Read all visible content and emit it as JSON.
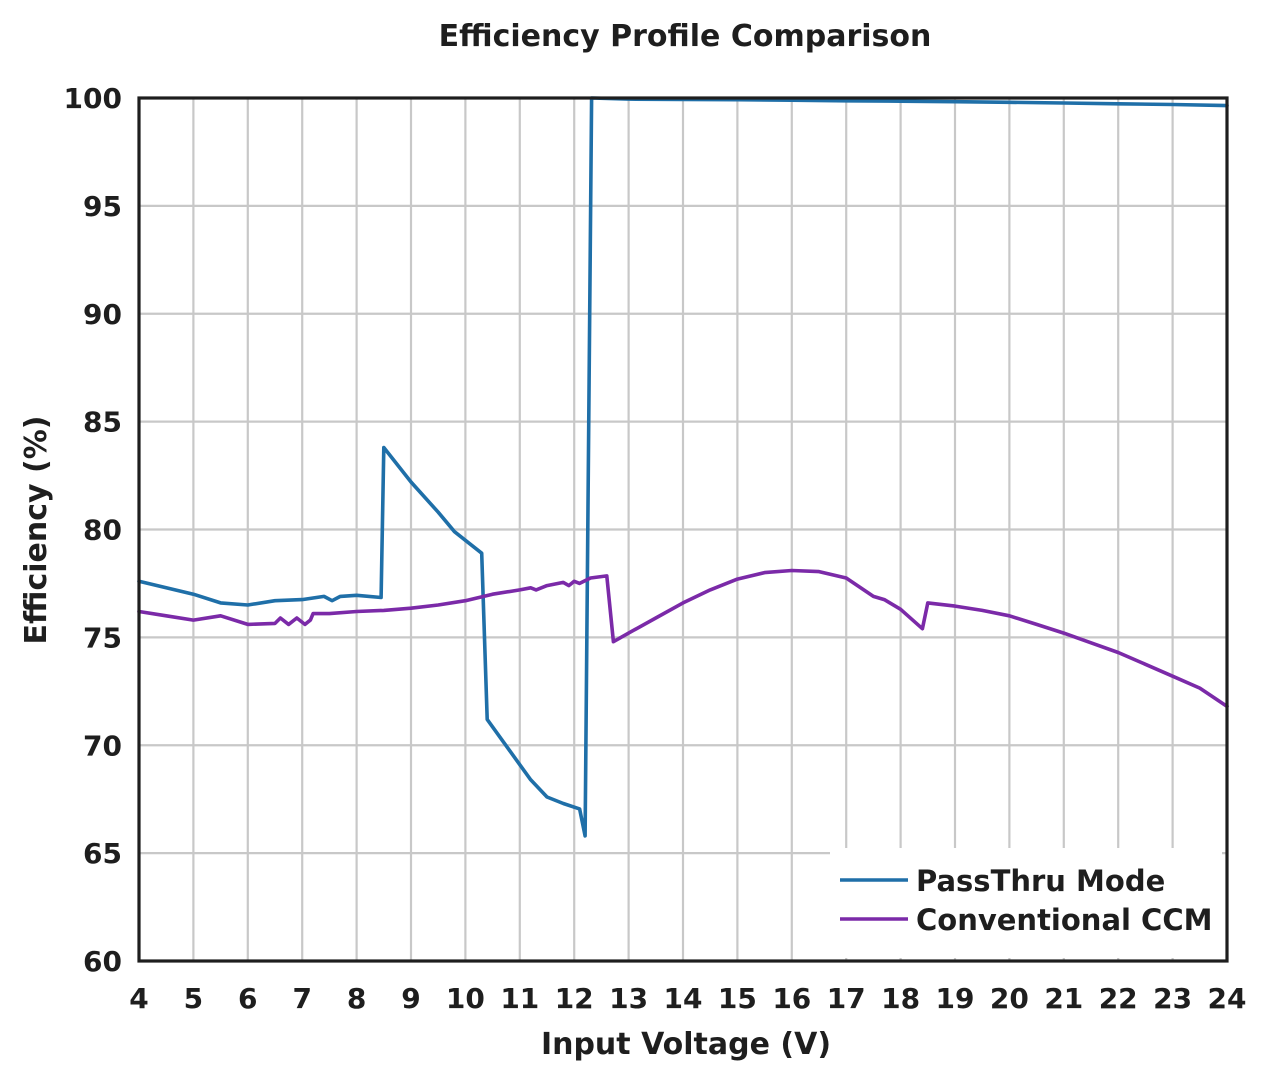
{
  "chart_data": {
    "type": "line",
    "title": "Efficiency Profile Comparison",
    "xlabel": "Input Voltage (V)",
    "ylabel": "Efficiency (%)",
    "xlim": [
      4,
      24
    ],
    "ylim": [
      60,
      100
    ],
    "xticks": [
      4,
      5,
      6,
      7,
      8,
      9,
      10,
      11,
      12,
      13,
      14,
      15,
      16,
      17,
      18,
      19,
      20,
      21,
      22,
      23,
      24
    ],
    "xtick_labels": [
      "4",
      "5",
      "6",
      "7",
      "8",
      "9",
      "10",
      "11",
      "12",
      "13",
      "14",
      "15",
      "16",
      "17",
      "18",
      "19",
      "20",
      "21",
      "22",
      "23",
      "24"
    ],
    "yticks": [
      60,
      65,
      70,
      75,
      80,
      85,
      90,
      95,
      100
    ],
    "ytick_labels": [
      "60",
      "65",
      "70",
      "75",
      "80",
      "85",
      "90",
      "95",
      "100"
    ],
    "grid": true,
    "legend_position": "bottom-right",
    "series": [
      {
        "name": "PassThru Mode",
        "color": "#1f6fa8",
        "points": [
          [
            4.0,
            77.6
          ],
          [
            4.5,
            77.3
          ],
          [
            5.0,
            77.0
          ],
          [
            5.5,
            76.6
          ],
          [
            6.0,
            76.5
          ],
          [
            6.5,
            76.7
          ],
          [
            7.0,
            76.75
          ],
          [
            7.4,
            76.9
          ],
          [
            7.55,
            76.7
          ],
          [
            7.7,
            76.9
          ],
          [
            8.0,
            76.95
          ],
          [
            8.45,
            76.85
          ],
          [
            8.5,
            83.8
          ],
          [
            9.0,
            82.2
          ],
          [
            9.5,
            80.8
          ],
          [
            9.8,
            79.9
          ],
          [
            10.0,
            79.5
          ],
          [
            10.3,
            78.9
          ],
          [
            10.4,
            71.2
          ],
          [
            10.8,
            69.8
          ],
          [
            11.2,
            68.4
          ],
          [
            11.5,
            67.6
          ],
          [
            11.8,
            67.3
          ],
          [
            12.1,
            67.05
          ],
          [
            12.2,
            65.8
          ],
          [
            12.32,
            100
          ],
          [
            13,
            99.95
          ],
          [
            14,
            99.93
          ],
          [
            15,
            99.92
          ],
          [
            16,
            99.9
          ],
          [
            17,
            99.87
          ],
          [
            18,
            99.85
          ],
          [
            19,
            99.83
          ],
          [
            20,
            99.8
          ],
          [
            21,
            99.77
          ],
          [
            22,
            99.73
          ],
          [
            23,
            99.7
          ],
          [
            24,
            99.65
          ]
        ]
      },
      {
        "name": "Conventional CCM",
        "color": "#7b2aa8",
        "points": [
          [
            4.0,
            76.2
          ],
          [
            4.5,
            76.0
          ],
          [
            5.0,
            75.8
          ],
          [
            5.5,
            76.0
          ],
          [
            6.0,
            75.6
          ],
          [
            6.5,
            75.65
          ],
          [
            6.6,
            75.9
          ],
          [
            6.75,
            75.6
          ],
          [
            6.9,
            75.9
          ],
          [
            7.05,
            75.6
          ],
          [
            7.15,
            75.8
          ],
          [
            7.2,
            76.1
          ],
          [
            7.5,
            76.1
          ],
          [
            8.0,
            76.2
          ],
          [
            8.5,
            76.25
          ],
          [
            9.0,
            76.35
          ],
          [
            9.5,
            76.5
          ],
          [
            10.0,
            76.7
          ],
          [
            10.5,
            77.0
          ],
          [
            11.0,
            77.2
          ],
          [
            11.2,
            77.3
          ],
          [
            11.3,
            77.2
          ],
          [
            11.5,
            77.4
          ],
          [
            11.8,
            77.55
          ],
          [
            11.9,
            77.4
          ],
          [
            12.0,
            77.6
          ],
          [
            12.1,
            77.5
          ],
          [
            12.3,
            77.75
          ],
          [
            12.6,
            77.85
          ],
          [
            12.72,
            74.8
          ],
          [
            13.0,
            75.2
          ],
          [
            13.5,
            75.9
          ],
          [
            14.0,
            76.6
          ],
          [
            14.5,
            77.2
          ],
          [
            15.0,
            77.7
          ],
          [
            15.5,
            78.0
          ],
          [
            16.0,
            78.1
          ],
          [
            16.5,
            78.05
          ],
          [
            17.0,
            77.75
          ],
          [
            17.5,
            76.9
          ],
          [
            17.7,
            76.75
          ],
          [
            18.0,
            76.3
          ],
          [
            18.4,
            75.4
          ],
          [
            18.5,
            76.6
          ],
          [
            19.0,
            76.45
          ],
          [
            19.5,
            76.25
          ],
          [
            20.0,
            76.0
          ],
          [
            20.5,
            75.6
          ],
          [
            21.0,
            75.2
          ],
          [
            21.5,
            74.75
          ],
          [
            22.0,
            74.3
          ],
          [
            22.5,
            73.75
          ],
          [
            23.0,
            73.2
          ],
          [
            23.5,
            72.65
          ],
          [
            24.0,
            71.8
          ]
        ]
      }
    ]
  }
}
